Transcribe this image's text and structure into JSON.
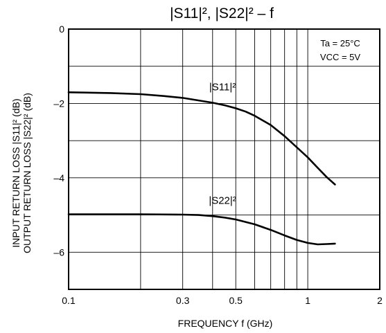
{
  "chart_data": {
    "type": "line",
    "title": "|S11|², |S22|²  –  f",
    "xlabel": "FREQUENCY   f   (GHz)",
    "ylabel": [
      "INPUT RETURN LOSS   |S11|²   (dB)",
      "OUTPUT RETURN LOSS  |S22|²   (dB)"
    ],
    "x_scale": "log",
    "xlim": [
      0.1,
      2
    ],
    "ylim": [
      -7,
      0
    ],
    "x_ticks": [
      {
        "value": 0.1,
        "label": "0.1"
      },
      {
        "value": 0.3,
        "label": "0.3"
      },
      {
        "value": 0.5,
        "label": "0.5"
      },
      {
        "value": 1,
        "label": "1"
      },
      {
        "value": 2,
        "label": "2"
      }
    ],
    "y_ticks": [
      {
        "value": 0,
        "label": "0"
      },
      {
        "value": -2,
        "label": "–2"
      },
      {
        "value": -4,
        "label": "–4"
      },
      {
        "value": -6,
        "label": "–6"
      }
    ],
    "grid": true,
    "conditions": [
      "Ta = 25°C",
      "VCC = 5V"
    ],
    "series": [
      {
        "name": "|S11|²",
        "x": [
          0.1,
          0.15,
          0.2,
          0.25,
          0.3,
          0.35,
          0.4,
          0.45,
          0.5,
          0.55,
          0.6,
          0.7,
          0.8,
          0.9,
          1.0,
          1.1,
          1.2,
          1.3
        ],
        "y": [
          -1.7,
          -1.72,
          -1.75,
          -1.8,
          -1.85,
          -1.92,
          -1.98,
          -2.05,
          -2.13,
          -2.22,
          -2.33,
          -2.58,
          -2.88,
          -3.18,
          -3.45,
          -3.73,
          -3.98,
          -4.18
        ]
      },
      {
        "name": "|S22|²",
        "x": [
          0.1,
          0.2,
          0.3,
          0.35,
          0.4,
          0.45,
          0.5,
          0.6,
          0.7,
          0.8,
          0.9,
          1.0,
          1.1,
          1.2,
          1.3
        ],
        "y": [
          -4.98,
          -4.98,
          -4.99,
          -5.0,
          -5.03,
          -5.07,
          -5.12,
          -5.25,
          -5.4,
          -5.55,
          -5.67,
          -5.75,
          -5.79,
          -5.78,
          -5.77
        ]
      }
    ]
  }
}
